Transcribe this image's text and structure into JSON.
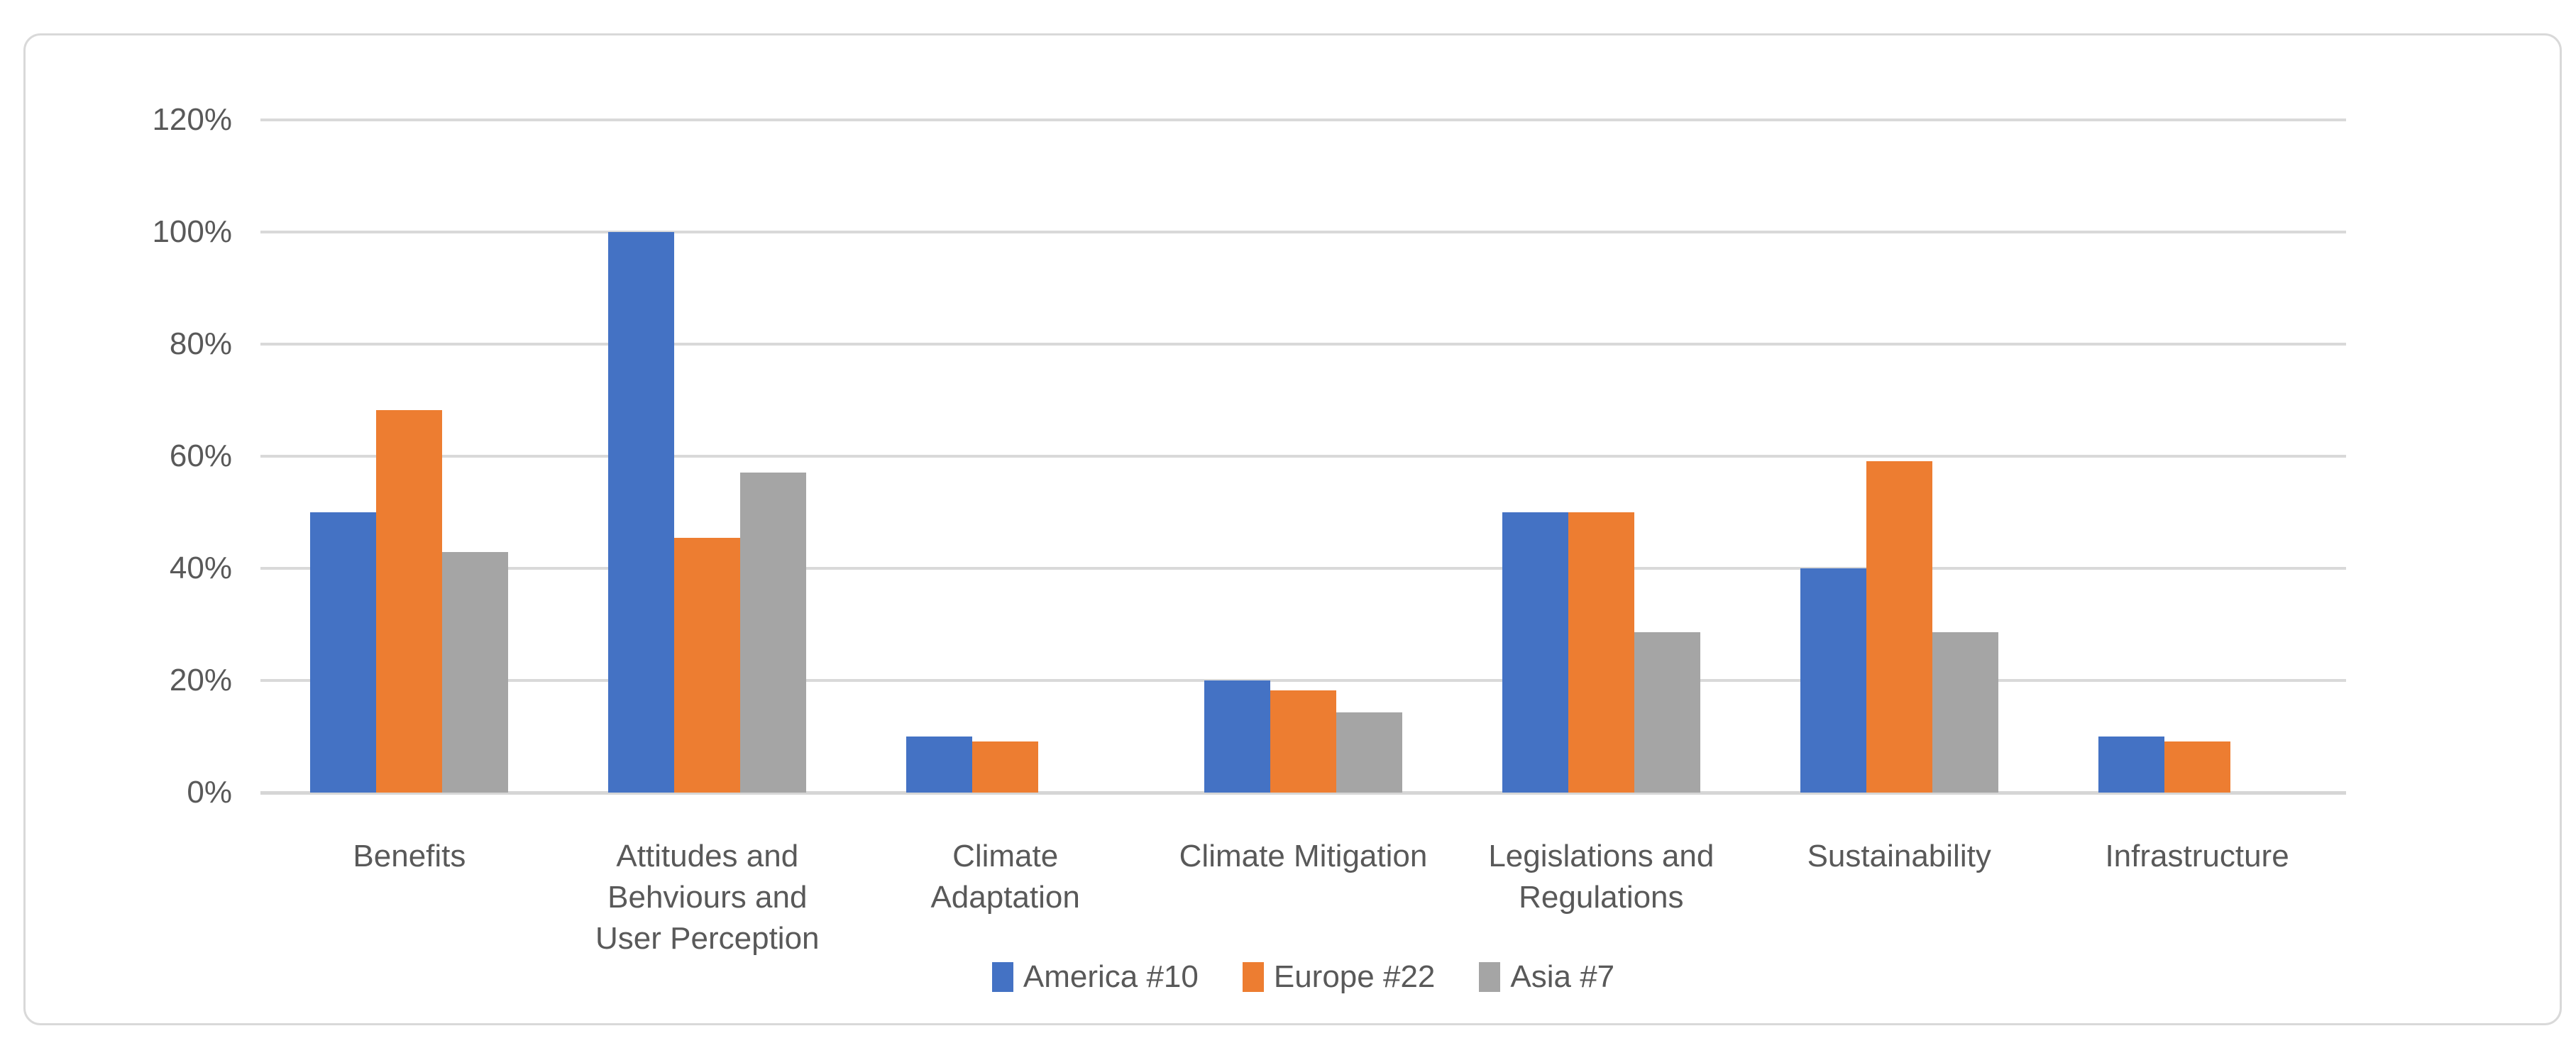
{
  "chart_data": {
    "type": "bar",
    "title": "",
    "xlabel": "",
    "ylabel": "",
    "categories": [
      "Benefits",
      "Attitudes and Behviours and User Perception",
      "Climate Adaptation",
      "Climate Mitigation",
      "Legislations and Regulations",
      "Sustainability",
      "Infrastructure"
    ],
    "category_label_lines": [
      [
        "Benefits"
      ],
      [
        "Attitudes and",
        "Behviours and",
        "User Perception"
      ],
      [
        "Climate",
        "Adaptation"
      ],
      [
        "Climate Mitigation"
      ],
      [
        "Legislations and",
        "Regulations"
      ],
      [
        "Sustainability"
      ],
      [
        "Infrastructure"
      ]
    ],
    "series": [
      {
        "name": "America #10",
        "color": "#4472C4",
        "values": [
          50,
          100,
          10,
          20,
          50,
          40,
          10
        ]
      },
      {
        "name": "Europe #22",
        "color": "#ED7D31",
        "values": [
          68.2,
          45.5,
          9.1,
          18.2,
          50,
          59.1,
          9.1
        ]
      },
      {
        "name": "Asia #7",
        "color": "#A5A5A5",
        "values": [
          42.9,
          57.1,
          0,
          14.3,
          28.6,
          28.6,
          0
        ]
      }
    ],
    "y_ticks": [
      "120%",
      "100%",
      "80%",
      "60%",
      "40%",
      "20%",
      "0%"
    ],
    "ylim": [
      0,
      120
    ],
    "grid": true,
    "legend_position": "bottom",
    "colors": {
      "text": "#595959",
      "gridline": "#D9D9D9",
      "frame_border": "#D9D9D9",
      "background": "#FFFFFF"
    }
  }
}
